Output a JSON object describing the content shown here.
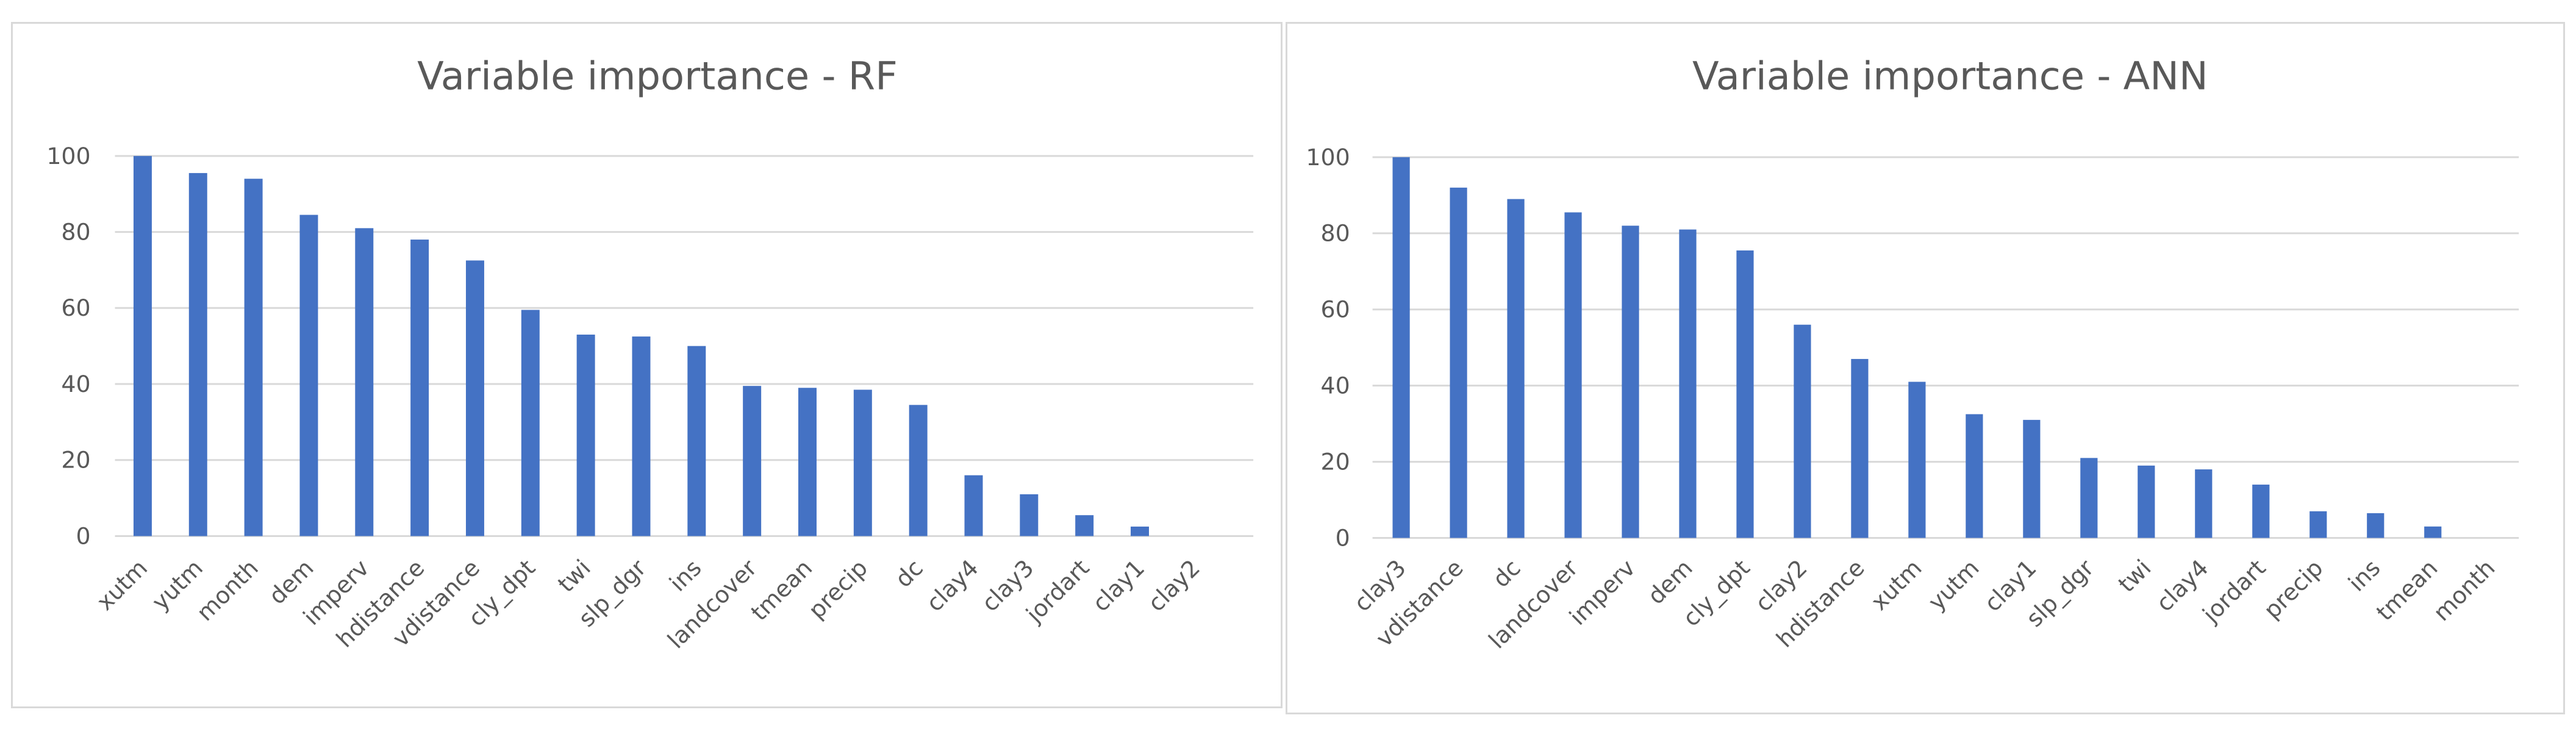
{
  "chart_data": [
    {
      "type": "bar",
      "title": "Variable importance - RF",
      "xlabel": "",
      "ylabel": "",
      "ylim": [
        0,
        100
      ],
      "yticks": [
        0,
        20,
        40,
        60,
        80,
        100
      ],
      "grid": true,
      "color": "#4472c4",
      "categories": [
        "xutm",
        "yutm",
        "month",
        "dem",
        "imperv",
        "hdistance",
        "vdistance",
        "cly_dpt",
        "twi",
        "slp_dgr",
        "ins",
        "landcover",
        "tmean",
        "precip",
        "dc",
        "clay4",
        "clay3",
        "jordart",
        "clay1",
        "clay2"
      ],
      "values": [
        100,
        95.5,
        94,
        84.5,
        81,
        78,
        72.5,
        59.5,
        53,
        52.5,
        50,
        39.5,
        39,
        38.5,
        34.5,
        16,
        11,
        5.5,
        2.5,
        0
      ]
    },
    {
      "type": "bar",
      "title": "Variable importance - ANN",
      "xlabel": "",
      "ylabel": "",
      "ylim": [
        0,
        100
      ],
      "yticks": [
        0,
        20,
        40,
        60,
        80,
        100
      ],
      "grid": true,
      "color": "#4472c4",
      "categories": [
        "clay3",
        "vdistance",
        "dc",
        "landcover",
        "imperv",
        "dem",
        "cly_dpt",
        "clay2",
        "hdistance",
        "xutm",
        "yutm",
        "clay1",
        "slp_dgr",
        "twi",
        "clay4",
        "jordart",
        "precip",
        "ins",
        "tmean",
        "month"
      ],
      "values": [
        100,
        92,
        89,
        85.5,
        82,
        81,
        75.5,
        56,
        47,
        41,
        32.5,
        31,
        21,
        19,
        18,
        14,
        7,
        6.5,
        3,
        0
      ]
    }
  ]
}
